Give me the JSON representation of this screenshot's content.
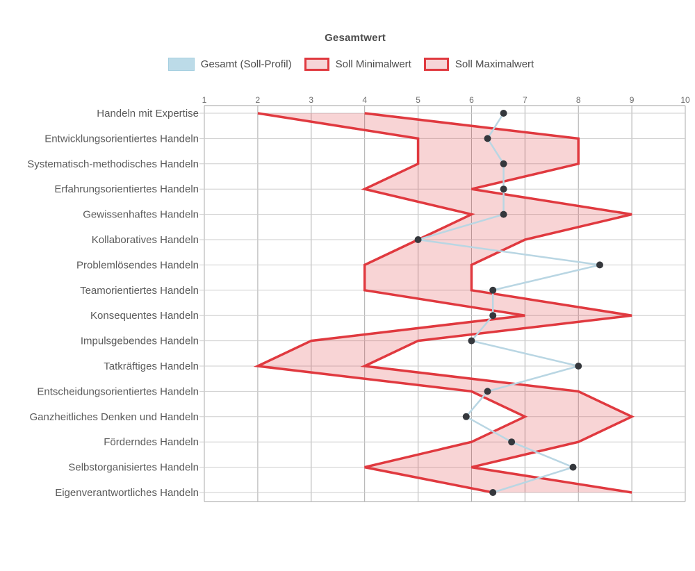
{
  "title": "Gesamtwert",
  "legend": {
    "items": [
      {
        "label": "Gesamt (Soll-Profil)",
        "kind": "gesamt"
      },
      {
        "label": "Soll Minimalwert",
        "kind": "range"
      },
      {
        "label": "Soll Maximalwert",
        "kind": "range"
      }
    ]
  },
  "colors": {
    "band_fill": "rgba(224,57,63,0.22)",
    "minmax_line": "#e0393f",
    "gesamt_line": "#b9d6e3",
    "dot": "#35383d",
    "legend_gesamt_fill": "#bcdbe8",
    "legend_gesamt_border": "#a5cfe0",
    "legend_range_fill": "#f6d5d7",
    "grid_vertical": "#ababab",
    "grid_horizontal": "#cdcdcd",
    "plot_border": "#a0a0a0"
  },
  "chart_data": {
    "type": "area",
    "subtype": "horizontal-range-band-with-markers",
    "title": "Gesamtwert",
    "categories": [
      "Handeln mit Expertise",
      "Entwicklungsorientiertes Handeln",
      "Systematisch-methodisches Handeln",
      "Erfahrungsorientiertes Handeln",
      "Gewissenhaftes Handeln",
      "Kollaboratives Handeln",
      "Problemlösendes Handeln",
      "Teamorientiertes Handeln",
      "Konsequentes Handeln",
      "Impulsgebendes Handeln",
      "Tatkräftiges Handeln",
      "Entscheidungsorientiertes Handeln",
      "Ganzheitliches Denken und Handeln",
      "Förderndes Handeln",
      "Selbstorganisiertes Handeln",
      "Eigenverantwortliches Handeln"
    ],
    "series": [
      {
        "name": "Gesamt (Soll-Profil)",
        "role": "value-line-with-markers",
        "values": [
          6.6,
          6.3,
          6.6,
          6.6,
          6.6,
          5.0,
          8.4,
          6.4,
          6.4,
          6.0,
          8.0,
          6.3,
          5.9,
          6.75,
          7.9,
          6.4
        ]
      },
      {
        "name": "Soll Minimalwert",
        "role": "band-lower",
        "values": [
          2,
          5,
          5,
          4,
          6,
          5,
          4,
          4,
          7,
          3,
          2,
          6,
          7,
          6,
          4,
          6.4
        ]
      },
      {
        "name": "Soll Maximalwert",
        "role": "band-upper",
        "values": [
          4,
          8,
          8,
          6,
          9,
          7,
          6,
          6,
          9,
          5,
          4,
          8,
          9,
          8,
          6,
          9
        ]
      }
    ],
    "xlim": [
      1,
      10
    ],
    "x_ticks": [
      "1",
      "2",
      "3",
      "4",
      "5",
      "6",
      "7",
      "8",
      "9",
      "10"
    ],
    "axis_position": "top",
    "grid": true,
    "legend_position": "top"
  }
}
